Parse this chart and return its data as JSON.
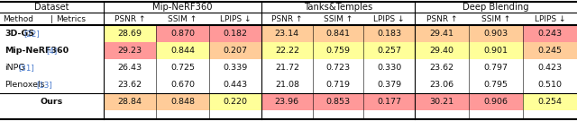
{
  "datasets": [
    "Mip-NeRF360",
    "Tanks&Temples",
    "Deep Blending"
  ],
  "metrics": [
    "PSNR ↑",
    "SSIM ↑",
    "LPIPS ↓"
  ],
  "methods": [
    "3D-GS",
    "Mip-NeRF360",
    "iNPG",
    "Plenoxels",
    "Ours"
  ],
  "refs": [
    "[22]",
    "[4]",
    "[31]",
    "[13]",
    ""
  ],
  "methods_bold": [
    true,
    true,
    false,
    false,
    true
  ],
  "data": {
    "Mip-NeRF360": {
      "PSNR": [
        28.69,
        29.23,
        26.43,
        23.62,
        28.84
      ],
      "SSIM": [
        0.87,
        0.844,
        0.725,
        0.67,
        0.848
      ],
      "LPIPS": [
        0.182,
        0.207,
        0.339,
        0.443,
        0.22
      ]
    },
    "Tanks&Temples": {
      "PSNR": [
        23.14,
        22.22,
        21.72,
        21.08,
        23.96
      ],
      "SSIM": [
        0.841,
        0.759,
        0.723,
        0.719,
        0.853
      ],
      "LPIPS": [
        0.183,
        0.257,
        0.33,
        0.379,
        0.177
      ]
    },
    "Deep Blending": {
      "PSNR": [
        29.41,
        29.4,
        23.62,
        23.06,
        30.21
      ],
      "SSIM": [
        0.903,
        0.901,
        0.797,
        0.795,
        0.906
      ],
      "LPIPS": [
        0.243,
        0.245,
        0.423,
        0.51,
        0.254
      ]
    }
  },
  "col_highlight": {
    "Mip-NeRF360": {
      "PSNR": [
        1,
        0,
        3
      ],
      "SSIM": [
        0,
        3,
        2
      ],
      "LPIPS": [
        0,
        2,
        1
      ]
    },
    "Tanks&Temples": {
      "PSNR": [
        0,
        3,
        2
      ],
      "SSIM": [
        0,
        3,
        2
      ],
      "LPIPS": [
        0,
        2,
        1
      ]
    },
    "Deep Blending": {
      "PSNR": [
        0,
        1,
        3
      ],
      "SSIM": [
        0,
        1,
        3
      ],
      "LPIPS": [
        2,
        1,
        0
      ]
    }
  },
  "highlight_colors": [
    "#ff9999",
    "#ffcc99",
    "#ffff99"
  ],
  "text_color": "#111111",
  "ref_color": "#4477cc",
  "lw_thick": 1.5,
  "lw_thin": 0.8
}
